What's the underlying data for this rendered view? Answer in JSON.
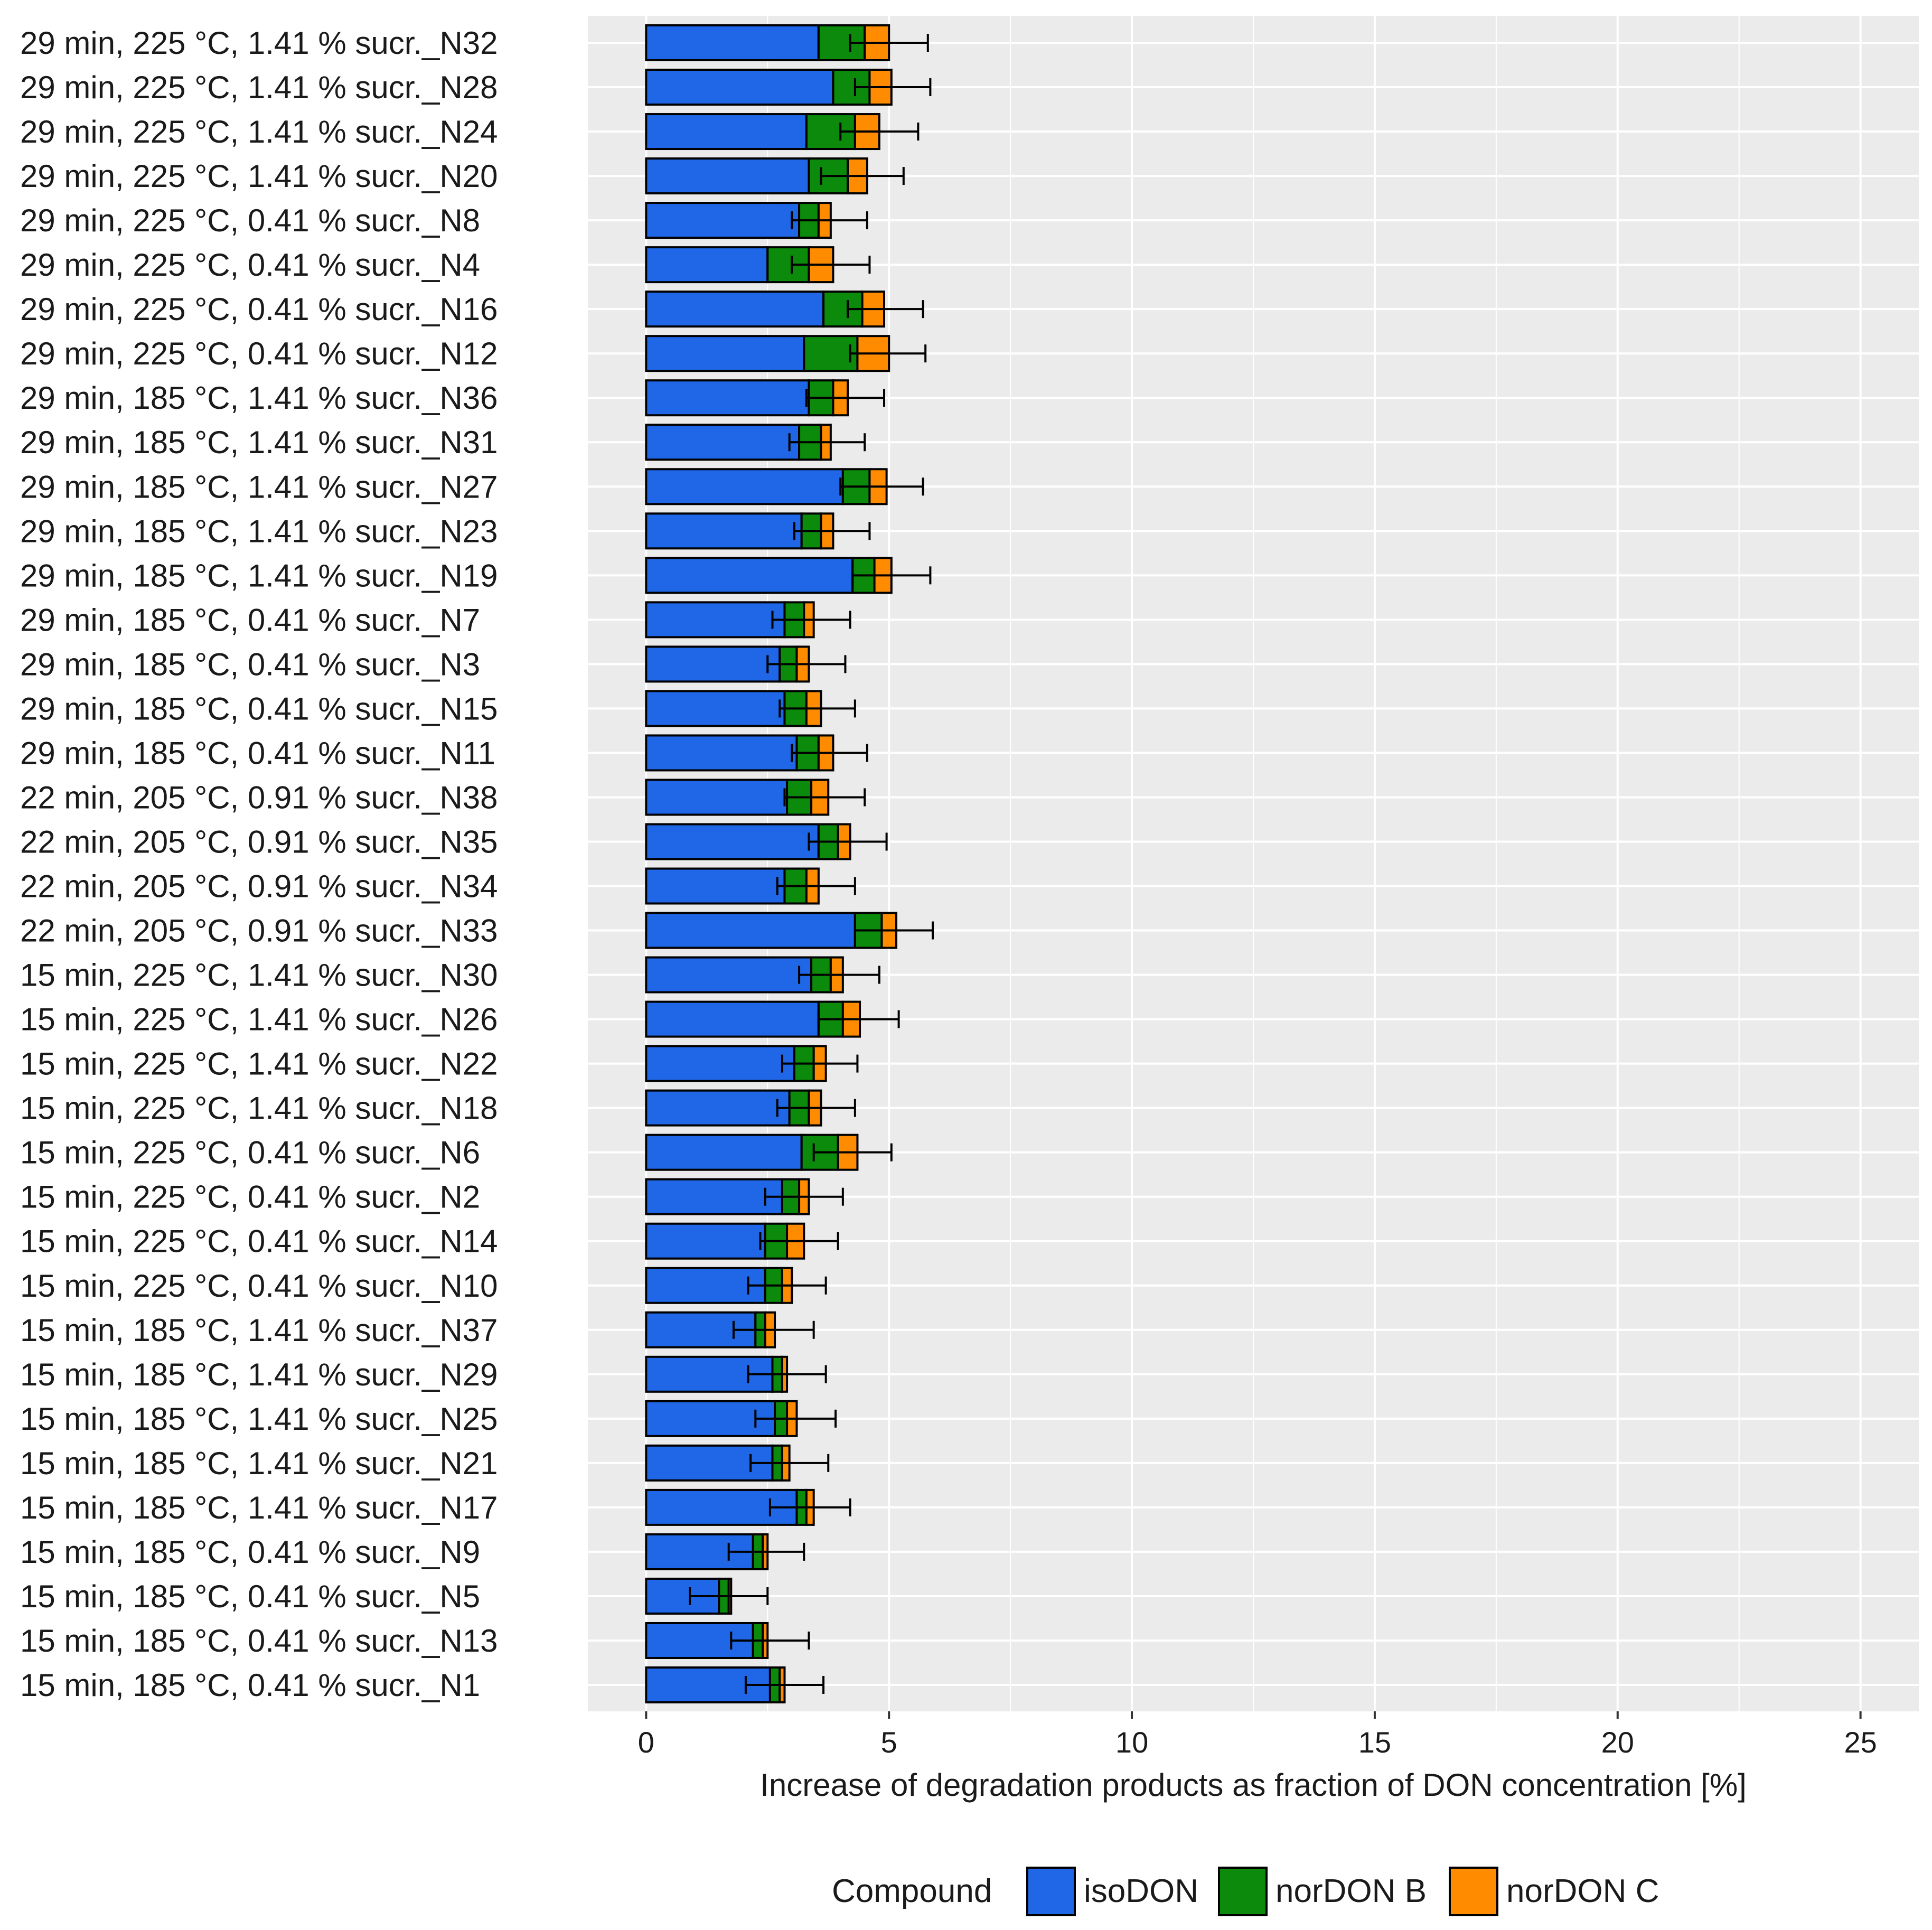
{
  "chart_data": {
    "type": "bar",
    "orientation": "horizontal",
    "stacked": true,
    "title": "",
    "xlabel": "Increase of degradation products as fraction of DON concentration [%]",
    "ylabel": "",
    "xlim": [
      -1.2,
      26.2
    ],
    "xticks": [
      0,
      5,
      10,
      15,
      20,
      25
    ],
    "xtick_labels": [
      "0",
      "5",
      "10",
      "15",
      "20",
      "25"
    ],
    "grid": true,
    "legend_position": "bottom",
    "legend_title": "Compound",
    "colors": {
      "isoDON": "#1f67e6",
      "norDON B": "#0b8a0b",
      "norDON C": "#ff8c00",
      "panel": "#ebebeb",
      "grid": "#ffffff"
    },
    "categories": [
      "29 min, 225 °C, 1.41 % sucr._N32",
      "29 min, 225 °C, 1.41 % sucr._N28",
      "29 min, 225 °C, 1.41 % sucr._N24",
      "29 min, 225 °C, 1.41 % sucr._N20",
      "29 min, 225 °C, 0.41 % sucr._N8",
      "29 min, 225 °C, 0.41 % sucr._N4",
      "29 min, 225 °C, 0.41 % sucr._N16",
      "29 min, 225 °C, 0.41 % sucr._N12",
      "29 min, 185 °C, 1.41 % sucr._N36",
      "29 min, 185 °C, 1.41 % sucr._N31",
      "29 min, 185 °C, 1.41 % sucr._N27",
      "29 min, 185 °C, 1.41 % sucr._N23",
      "29 min, 185 °C, 1.41 % sucr._N19",
      "29 min, 185 °C, 0.41 % sucr._N7",
      "29 min, 185 °C, 0.41 % sucr._N3",
      "29 min, 185 °C, 0.41 % sucr._N15",
      "29 min, 185 °C, 0.41 % sucr._N11",
      "22 min, 205 °C, 0.91 % sucr._N38",
      "22 min, 205 °C, 0.91 % sucr._N35",
      "22 min, 205 °C, 0.91 % sucr._N34",
      "22 min, 205 °C, 0.91 % sucr._N33",
      "15 min, 225 °C, 1.41 % sucr._N30",
      "15 min, 225 °C, 1.41 % sucr._N26",
      "15 min, 225 °C, 1.41 % sucr._N22",
      "15 min, 225 °C, 1.41 % sucr._N18",
      "15 min, 225 °C, 0.41 % sucr._N6",
      "15 min, 225 °C, 0.41 % sucr._N2",
      "15 min, 225 °C, 0.41 % sucr._N14",
      "15 min, 225 °C, 0.41 % sucr._N10",
      "15 min, 185 °C, 1.41 % sucr._N37",
      "15 min, 185 °C, 1.41 % sucr._N29",
      "15 min, 185 °C, 1.41 % sucr._N25",
      "15 min, 185 °C, 1.41 % sucr._N21",
      "15 min, 185 °C, 1.41 % sucr._N17",
      "15 min, 185 °C, 0.41 % sucr._N9",
      "15 min, 185 °C, 0.41 % sucr._N5",
      "15 min, 185 °C, 0.41 % sucr._N13",
      "15 min, 185 °C, 0.41 % sucr._N1"
    ],
    "series": [
      {
        "name": "isoDON",
        "values": [
          3.55,
          3.85,
          3.3,
          3.35,
          3.15,
          2.5,
          3.65,
          3.25,
          3.35,
          3.15,
          4.05,
          3.2,
          4.25,
          2.85,
          2.75,
          2.85,
          3.1,
          2.9,
          3.55,
          2.85,
          4.3,
          3.4,
          3.55,
          3.05,
          2.95,
          3.2,
          2.8,
          2.45,
          2.45,
          2.25,
          2.6,
          2.65,
          2.6,
          3.1,
          2.2,
          1.5,
          2.2,
          2.55
        ]
      },
      {
        "name": "norDON B",
        "values": [
          0.95,
          0.75,
          1.0,
          0.8,
          0.4,
          0.85,
          0.8,
          1.1,
          0.5,
          0.45,
          0.55,
          0.4,
          0.45,
          0.4,
          0.35,
          0.45,
          0.45,
          0.5,
          0.4,
          0.45,
          0.55,
          0.4,
          0.5,
          0.4,
          0.4,
          0.75,
          0.35,
          0.45,
          0.35,
          0.2,
          0.2,
          0.25,
          0.2,
          0.2,
          0.2,
          0.2,
          0.2,
          0.2
        ]
      },
      {
        "name": "norDON C",
        "values": [
          0.5,
          0.45,
          0.5,
          0.4,
          0.25,
          0.5,
          0.45,
          0.65,
          0.3,
          0.2,
          0.35,
          0.25,
          0.35,
          0.2,
          0.25,
          0.3,
          0.3,
          0.35,
          0.25,
          0.25,
          0.3,
          0.25,
          0.35,
          0.25,
          0.25,
          0.4,
          0.2,
          0.35,
          0.2,
          0.2,
          0.1,
          0.2,
          0.15,
          0.15,
          0.1,
          0.05,
          0.1,
          0.1
        ]
      }
    ],
    "error_bars": {
      "lower": [
        4.2,
        4.3,
        4.0,
        3.6,
        3.0,
        3.0,
        4.15,
        4.2,
        3.3,
        2.95,
        4.0,
        3.05,
        4.25,
        2.6,
        2.5,
        2.75,
        3.0,
        2.85,
        3.35,
        2.7,
        4.3,
        3.15,
        3.55,
        2.8,
        2.7,
        3.45,
        2.45,
        2.35,
        2.1,
        1.8,
        2.1,
        2.25,
        2.15,
        2.55,
        1.7,
        0.9,
        1.75,
        2.05
      ],
      "upper": [
        5.8,
        5.85,
        5.6,
        5.3,
        4.55,
        4.6,
        5.7,
        5.75,
        4.9,
        4.5,
        5.7,
        4.6,
        5.85,
        4.2,
        4.1,
        4.3,
        4.55,
        4.5,
        4.95,
        4.3,
        5.9,
        4.8,
        5.2,
        4.35,
        4.3,
        5.05,
        4.05,
        3.95,
        3.7,
        3.45,
        3.7,
        3.9,
        3.75,
        4.2,
        3.25,
        2.5,
        3.35,
        3.65
      ]
    }
  }
}
